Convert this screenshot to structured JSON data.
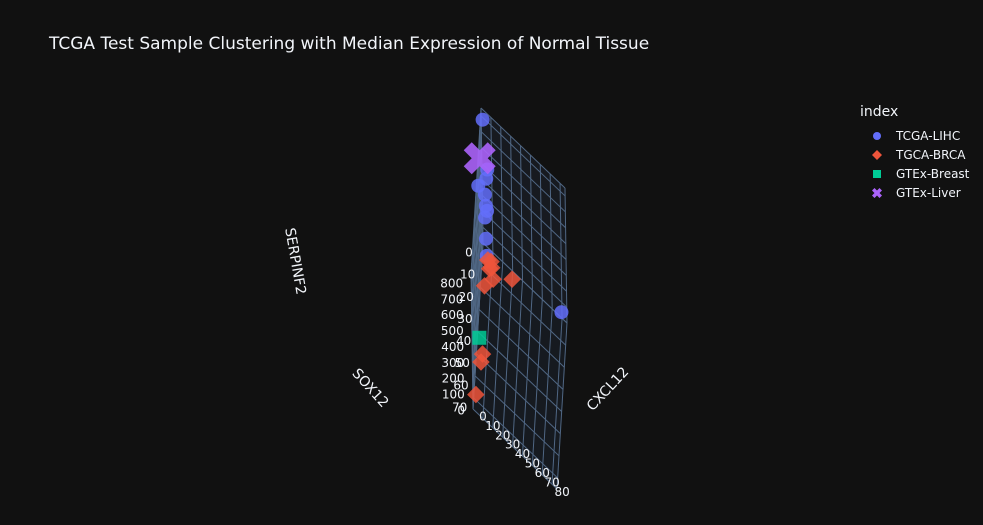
{
  "chart_data": {
    "type": "scatter",
    "title": "TCGA Test Sample Clustering with Median Expression of Normal Tissue",
    "xlabel": "CXCL12",
    "ylabel": "SOX12",
    "zlabel": "SERPINF2",
    "x_ticks": [
      "0",
      "10",
      "20",
      "30",
      "40",
      "50",
      "60",
      "70",
      "80"
    ],
    "y_ticks": [
      "0",
      "10",
      "20",
      "30",
      "40",
      "50",
      "60",
      "70"
    ],
    "z_ticks": [
      "0",
      "100",
      "200",
      "300",
      "400",
      "500",
      "600",
      "700",
      "800"
    ],
    "xlim": [
      0,
      85
    ],
    "ylim": [
      0,
      75
    ],
    "zlim": [
      0,
      850
    ],
    "grid": true,
    "legend_title": "index",
    "legend_position": "top-right",
    "series": [
      {
        "name": "TCGA-LIHC",
        "color": "#636efa",
        "marker": "circle",
        "points": [
          {
            "x": 2,
            "y": 3,
            "z": 830
          },
          {
            "x": 2,
            "y": 35,
            "z": 860
          },
          {
            "x": 6,
            "y": 3,
            "z": 540
          },
          {
            "x": 5,
            "y": 4,
            "z": 490
          },
          {
            "x": 3,
            "y": 2,
            "z": 350
          },
          {
            "x": 4,
            "y": 3,
            "z": 300
          },
          {
            "x": 5,
            "y": 2,
            "z": 260
          },
          {
            "x": 3,
            "y": 3,
            "z": 220
          },
          {
            "x": 4,
            "y": 5,
            "z": 120
          },
          {
            "x": 5,
            "y": 8,
            "z": 60
          },
          {
            "x": 80,
            "y": 3,
            "z": 80
          }
        ]
      },
      {
        "name": "TGCA-BRCA",
        "color": "#ef553b",
        "marker": "diamond",
        "points": [
          {
            "x": 6,
            "y": 8,
            "z": 40
          },
          {
            "x": 8,
            "y": 10,
            "z": 25
          },
          {
            "x": 10,
            "y": 8,
            "z": 15
          },
          {
            "x": 12,
            "y": 12,
            "z": 10
          },
          {
            "x": 4,
            "y": 18,
            "z": 5
          },
          {
            "x": 9,
            "y": 6,
            "z": 20
          },
          {
            "x": 30,
            "y": 4,
            "z": 5
          },
          {
            "x": 6,
            "y": 48,
            "z": 5
          },
          {
            "x": 5,
            "y": 52,
            "z": 5
          },
          {
            "x": 2,
            "y": 68,
            "z": 5
          }
        ]
      },
      {
        "name": "GTEx-Breast",
        "color": "#00cc96",
        "marker": "square",
        "points": [
          {
            "x": 3,
            "y": 48,
            "z": 90
          }
        ]
      },
      {
        "name": "GTEx-Liver",
        "color": "#ab63fa",
        "marker": "x",
        "points": [
          {
            "x": 1,
            "y": 18,
            "z": 790
          }
        ]
      }
    ]
  }
}
